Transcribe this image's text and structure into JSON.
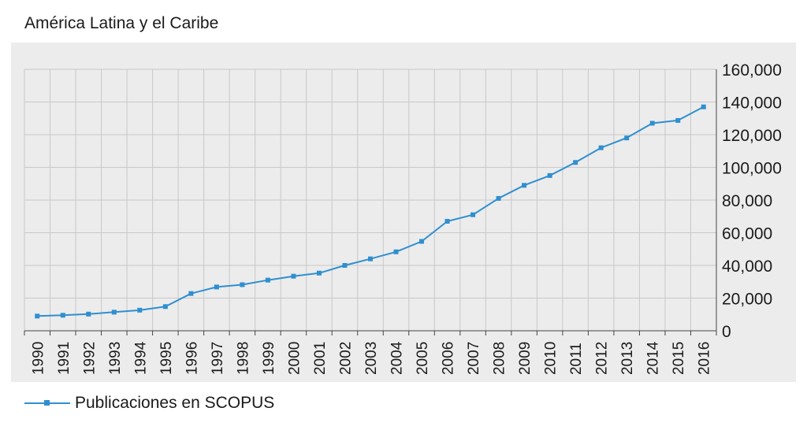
{
  "chart_data": {
    "type": "line",
    "title": "América Latina y el Caribe",
    "xlabel": "",
    "ylabel": "",
    "x": [
      "1990",
      "1991",
      "1992",
      "1993",
      "1994",
      "1995",
      "1996",
      "1997",
      "1998",
      "1999",
      "2000",
      "2001",
      "2002",
      "2003",
      "2004",
      "2005",
      "2006",
      "2007",
      "2008",
      "2009",
      "2010",
      "2011",
      "2012",
      "2013",
      "2014",
      "2015",
      "2016"
    ],
    "series": [
      {
        "name": "Publicaciones en SCOPUS",
        "color": "#2f8fd0",
        "values": [
          9000,
          9500,
          10200,
          11400,
          12600,
          14800,
          22800,
          26800,
          28200,
          31000,
          33400,
          35300,
          40000,
          44000,
          48300,
          54700,
          67000,
          71000,
          81000,
          89000,
          95000,
          103000,
          112000,
          118000,
          127000,
          128700,
          137000
        ]
      }
    ],
    "ylim": [
      0,
      160000
    ],
    "yticks": [
      0,
      20000,
      40000,
      60000,
      80000,
      100000,
      120000,
      140000,
      160000
    ],
    "ytick_labels": [
      "0",
      "20,000",
      "40,000",
      "60,000",
      "80,000",
      "100,000",
      "120,000",
      "140,000",
      "160,000"
    ],
    "yaxis_side": "right",
    "grid": true,
    "legend_position": "bottom-left",
    "plot_background": "#ececec",
    "grid_color": "#c8c8c8"
  }
}
